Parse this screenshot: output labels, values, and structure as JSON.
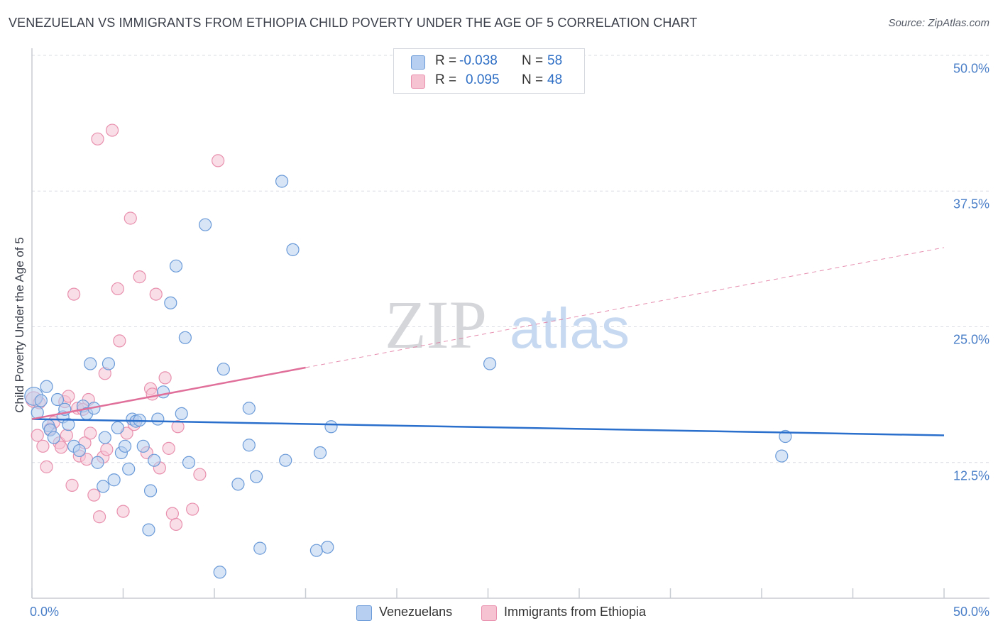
{
  "colors": {
    "blue_fill": "#b7cff0",
    "blue_stroke": "#6a9ad8",
    "blue_line": "#2a6fcc",
    "pink_fill": "#f6c3d3",
    "pink_stroke": "#e890ad",
    "pink_line": "#e0709a",
    "grid": "#d9dce2",
    "axis": "#c8ccd3",
    "tick_label": "#4a7fc8",
    "watermark": "#d4d6da",
    "watermark2": "#c6d9f0"
  },
  "header": {
    "title": "VENEZUELAN VS IMMIGRANTS FROM ETHIOPIA CHILD POVERTY UNDER THE AGE OF 5 CORRELATION CHART",
    "source": "Source: ZipAtlas.com"
  },
  "legend": {
    "r_label": "R = ",
    "n_label": "N = ",
    "series1": {
      "r": "-0.038",
      "n": "58"
    },
    "series2": {
      "r": "0.095",
      "n": "48"
    }
  },
  "bottom_legend": {
    "series1": "Venezuelans",
    "series2": "Immigrants from Ethiopia"
  },
  "watermark": {
    "part1": "ZIP",
    "part2": "atlas"
  },
  "chart_data": {
    "type": "scatter",
    "title": "VENEZUELAN VS IMMIGRANTS FROM ETHIOPIA CHILD POVERTY UNDER THE AGE OF 5 CORRELATION CHART",
    "xlabel": "",
    "ylabel": "Child Poverty Under the Age of 5",
    "xlim": [
      0,
      50
    ],
    "ylim": [
      0,
      50
    ],
    "x_tick_labels": [
      "0.0%",
      "50.0%"
    ],
    "y_ticks": [
      {
        "value": 12.5,
        "label": "12.5%"
      },
      {
        "value": 25.0,
        "label": "25.0%"
      },
      {
        "value": 37.5,
        "label": "37.5%"
      },
      {
        "value": 50.0,
        "label": "50.0%"
      }
    ],
    "series": [
      {
        "name": "Venezuelans",
        "r": -0.038,
        "n": 58,
        "trend": {
          "x0": 0,
          "y0": 16.5,
          "x1": 50,
          "y1": 15.0,
          "solid_until": 50
        },
        "points": [
          [
            0.1,
            18.6,
            1.5
          ],
          [
            0.3,
            17.1,
            1
          ],
          [
            0.5,
            18.2,
            1
          ],
          [
            0.8,
            19.5,
            1
          ],
          [
            0.9,
            15.9,
            1
          ],
          [
            1.0,
            15.5,
            1
          ],
          [
            1.2,
            14.8,
            1
          ],
          [
            1.4,
            18.3,
            1
          ],
          [
            1.7,
            16.7,
            1
          ],
          [
            1.8,
            17.4,
            1
          ],
          [
            2.0,
            16.0,
            1
          ],
          [
            2.3,
            14.0,
            1
          ],
          [
            2.6,
            13.6,
            1
          ],
          [
            2.8,
            17.7,
            1
          ],
          [
            3.0,
            17.0,
            1
          ],
          [
            3.2,
            21.6,
            1
          ],
          [
            3.4,
            17.5,
            1
          ],
          [
            3.6,
            12.5,
            1
          ],
          [
            3.9,
            10.3,
            1
          ],
          [
            4.0,
            14.8,
            1
          ],
          [
            4.2,
            21.6,
            1
          ],
          [
            4.5,
            10.9,
            1
          ],
          [
            4.7,
            15.7,
            1
          ],
          [
            4.9,
            13.4,
            1
          ],
          [
            5.1,
            14.0,
            1
          ],
          [
            5.3,
            11.9,
            1
          ],
          [
            5.5,
            16.5,
            1
          ],
          [
            5.7,
            16.3,
            1
          ],
          [
            5.9,
            16.4,
            1
          ],
          [
            6.1,
            14.0,
            1
          ],
          [
            6.4,
            6.3,
            1
          ],
          [
            6.5,
            9.9,
            1
          ],
          [
            6.7,
            12.7,
            1
          ],
          [
            6.9,
            16.5,
            1
          ],
          [
            7.2,
            19.0,
            1
          ],
          [
            7.6,
            27.2,
            1
          ],
          [
            7.9,
            30.6,
            1
          ],
          [
            8.2,
            17.0,
            1
          ],
          [
            8.4,
            24.0,
            1
          ],
          [
            8.6,
            12.5,
            1
          ],
          [
            9.5,
            34.4,
            1
          ],
          [
            10.3,
            2.4,
            1
          ],
          [
            10.5,
            21.1,
            1
          ],
          [
            11.3,
            10.5,
            1
          ],
          [
            11.9,
            14.1,
            1
          ],
          [
            11.9,
            17.5,
            1
          ],
          [
            12.3,
            11.2,
            1
          ],
          [
            12.5,
            4.6,
            1
          ],
          [
            13.7,
            38.4,
            1
          ],
          [
            13.9,
            12.7,
            1
          ],
          [
            14.3,
            32.1,
            1
          ],
          [
            15.6,
            4.4,
            1
          ],
          [
            15.8,
            13.4,
            1
          ],
          [
            16.2,
            4.7,
            1
          ],
          [
            16.4,
            15.8,
            1
          ],
          [
            25.1,
            21.6,
            1
          ],
          [
            41.1,
            13.1,
            1
          ],
          [
            41.3,
            14.9,
            1
          ]
        ]
      },
      {
        "name": "Immigrants from Ethiopia",
        "r": 0.095,
        "n": 48,
        "trend": {
          "x0": 0,
          "y0": 16.5,
          "x1": 50,
          "y1": 32.3,
          "solid_until": 15
        },
        "points": [
          [
            0.1,
            18.3,
            1.3
          ],
          [
            0.3,
            15.0,
            1
          ],
          [
            0.4,
            18.0,
            1
          ],
          [
            0.6,
            14.0,
            1
          ],
          [
            0.8,
            12.1,
            1
          ],
          [
            1.0,
            15.6,
            1
          ],
          [
            1.2,
            16.2,
            1
          ],
          [
            1.5,
            14.3,
            1
          ],
          [
            1.6,
            13.9,
            1
          ],
          [
            1.8,
            18.1,
            1
          ],
          [
            1.9,
            15.0,
            1
          ],
          [
            2.0,
            18.6,
            1
          ],
          [
            2.2,
            10.4,
            1
          ],
          [
            2.3,
            28.0,
            1
          ],
          [
            2.5,
            17.5,
            1
          ],
          [
            2.6,
            13.1,
            1
          ],
          [
            2.8,
            17.4,
            1
          ],
          [
            2.9,
            14.3,
            1
          ],
          [
            3.0,
            12.8,
            1
          ],
          [
            3.1,
            18.3,
            1
          ],
          [
            3.2,
            15.2,
            1
          ],
          [
            3.4,
            9.5,
            1
          ],
          [
            3.6,
            42.3,
            1
          ],
          [
            3.7,
            7.5,
            1
          ],
          [
            3.9,
            13.0,
            1
          ],
          [
            4.0,
            20.7,
            1
          ],
          [
            4.1,
            13.7,
            1
          ],
          [
            4.4,
            43.1,
            1
          ],
          [
            4.7,
            28.5,
            1
          ],
          [
            4.8,
            23.7,
            1
          ],
          [
            5.0,
            8.0,
            1
          ],
          [
            5.2,
            15.2,
            1
          ],
          [
            5.4,
            35.0,
            1
          ],
          [
            5.6,
            16.0,
            1
          ],
          [
            5.9,
            29.6,
            1
          ],
          [
            6.3,
            13.4,
            1
          ],
          [
            6.5,
            19.3,
            1
          ],
          [
            6.6,
            18.8,
            1
          ],
          [
            6.8,
            28.0,
            1
          ],
          [
            7.0,
            12.0,
            1
          ],
          [
            7.3,
            20.3,
            1
          ],
          [
            7.5,
            13.8,
            1
          ],
          [
            7.7,
            7.8,
            1
          ],
          [
            7.9,
            6.8,
            1
          ],
          [
            8.0,
            15.8,
            1
          ],
          [
            8.8,
            8.2,
            1
          ],
          [
            9.2,
            11.4,
            1
          ],
          [
            10.2,
            40.3,
            1
          ]
        ]
      }
    ]
  }
}
